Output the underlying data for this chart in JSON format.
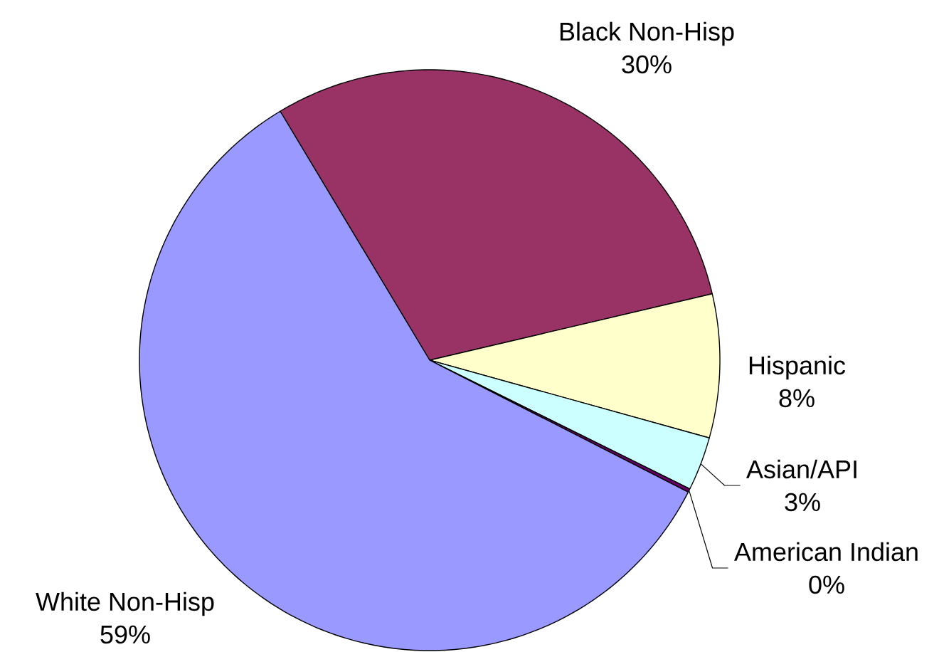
{
  "chart_data": {
    "type": "pie",
    "categories": [
      "Black Non-Hisp",
      "Hispanic",
      "Asian/API",
      "American Indian",
      "White Non-Hisp"
    ],
    "values": [
      30,
      8,
      3,
      0.2,
      59
    ],
    "colors": [
      "#993366",
      "#ffffcc",
      "#ccffff",
      "#660066",
      "#9999ff"
    ],
    "value_labels": [
      "30%",
      "8%",
      "3%",
      "0%",
      "59%"
    ]
  }
}
